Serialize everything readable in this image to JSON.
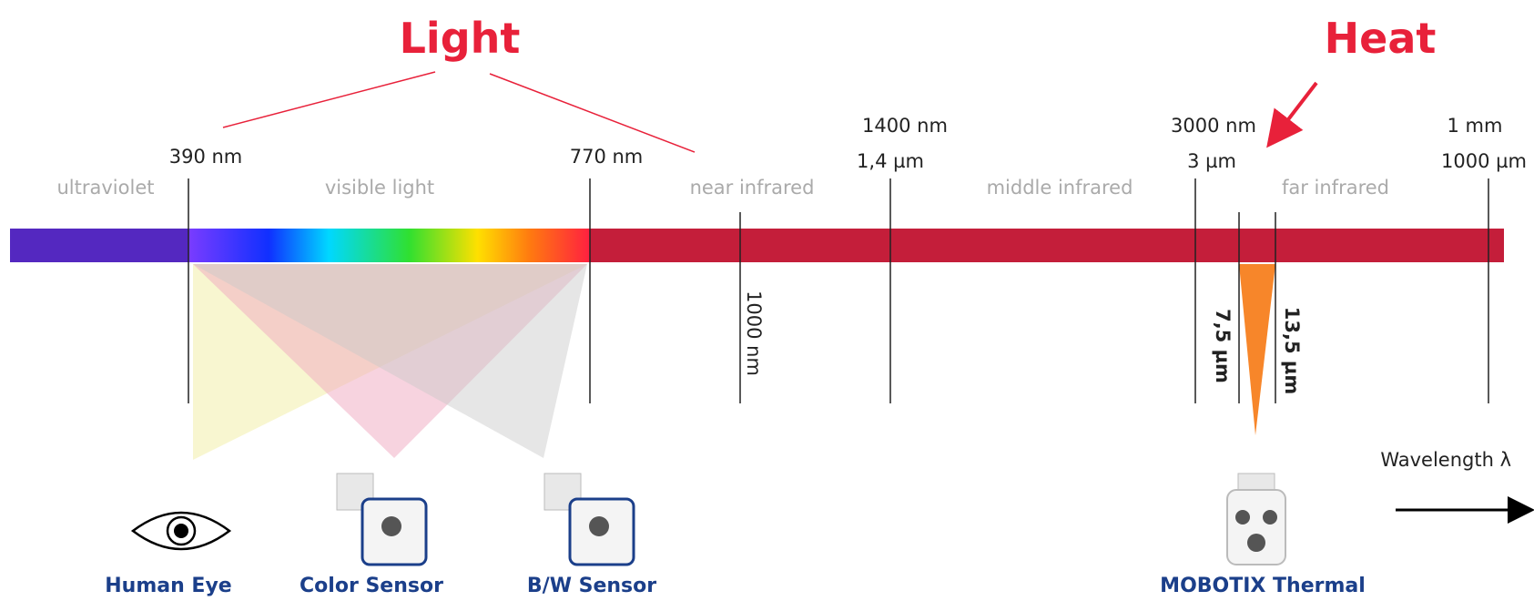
{
  "header": {
    "light": "Light",
    "heat": "Heat"
  },
  "boundaries": [
    {
      "top": "390 nm"
    },
    {
      "top": "770 nm"
    },
    {
      "top": "1400 nm",
      "bottom": "1,4 µm"
    },
    {
      "top": "3000 nm",
      "bottom": "3 µm"
    },
    {
      "top": "1 mm",
      "bottom": "1000 µm"
    }
  ],
  "regions": [
    "ultraviolet",
    "visible light",
    "near infrared",
    "middle infrared",
    "far infrared"
  ],
  "markers": {
    "near": "1000 nm",
    "thermal_low": "7,5 µm",
    "thermal_high": "13,5 µm"
  },
  "axis_label": "Wavelength λ",
  "sensors": [
    "Human Eye",
    "Color Sensor",
    "B/W Sensor",
    "MOBOTIX Thermal"
  ]
}
